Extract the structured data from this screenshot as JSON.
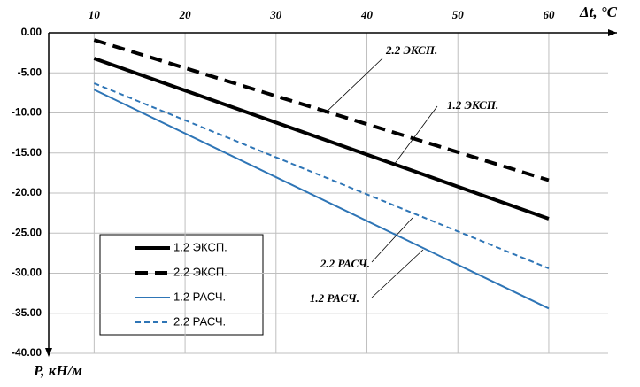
{
  "chart_data": {
    "type": "line",
    "x_label": "Δt, °C",
    "y_label": "P, кН/м",
    "xlim": [
      5,
      67.5
    ],
    "xticks": [
      10,
      20,
      30,
      40,
      50,
      60
    ],
    "ylim": [
      -40,
      0
    ],
    "yticks": [
      {
        "value": 0,
        "label": "0.00"
      },
      {
        "value": -5,
        "label": "-5.00"
      },
      {
        "value": -10,
        "label": "-10.00"
      },
      {
        "value": -15,
        "label": "-15.00"
      },
      {
        "value": -20,
        "label": "-20.00"
      },
      {
        "value": -25,
        "label": "-25.00"
      },
      {
        "value": -30,
        "label": "-30.00"
      },
      {
        "value": -35,
        "label": "-35.00"
      },
      {
        "value": -40,
        "label": "-40.00"
      }
    ],
    "grid": true,
    "x": [
      10,
      60
    ],
    "series": [
      {
        "name": "1.2 ЭКСП.",
        "color": "#000000",
        "width": 4,
        "dashed": false,
        "values": [
          -3.2,
          -23.2
        ]
      },
      {
        "name": "2.2 ЭКСП.",
        "color": "#000000",
        "width": 4,
        "dashed": true,
        "values": [
          -0.9,
          -18.4
        ]
      },
      {
        "name": "1.2 РАСЧ.",
        "color": "#2e75b6",
        "width": 2,
        "dashed": false,
        "values": [
          -7.1,
          -34.4
        ]
      },
      {
        "name": "2.2 РАСЧ.",
        "color": "#2e75b6",
        "width": 2,
        "dashed": true,
        "values": [
          -6.3,
          -29.4
        ]
      }
    ],
    "annotations": [
      "2.2 ЭКСП.",
      "1.2 ЭКСП.",
      "2.2 РАСЧ.",
      "1.2 РАСЧ."
    ]
  }
}
